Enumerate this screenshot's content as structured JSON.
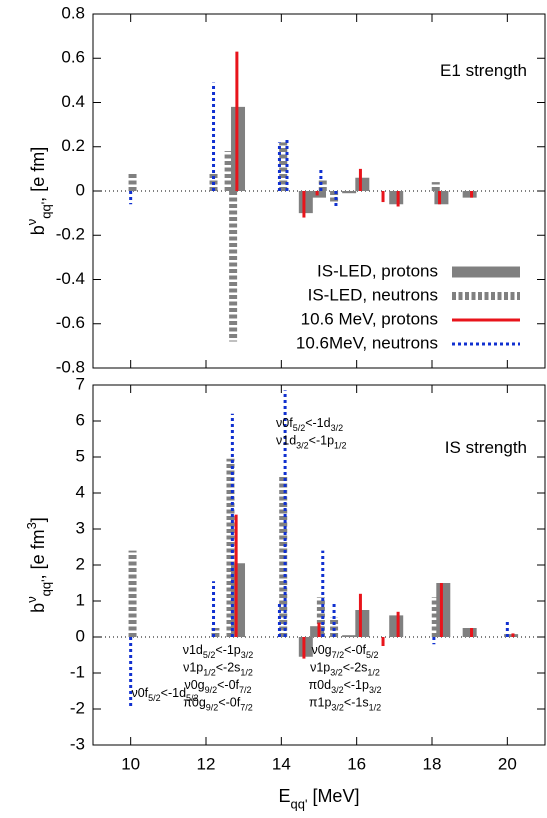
{
  "chart_data": [
    {
      "type": "bar",
      "panel_label": "E1 strength",
      "ylabel": [
        {
          "text": "b"
        },
        {
          "text": "ν",
          "style": "sup"
        },
        {
          "text": "qq'",
          "style": "sub"
        },
        {
          "text": ", [e fm]"
        }
      ],
      "xlim": [
        9,
        21
      ],
      "xticks": [
        10,
        12,
        14,
        16,
        18,
        20
      ],
      "ylim": [
        -0.8,
        0.8
      ],
      "yticks": [
        -0.8,
        -0.6,
        -0.4,
        -0.2,
        0,
        0.2,
        0.4,
        0.6,
        0.8
      ],
      "legend": "lower right",
      "series": [
        {
          "name": "IS-LED, protons",
          "color": "#808080",
          "style": "solid-thick",
          "x": [
            12.85,
            14.65,
            15.0,
            15.8,
            16.15,
            17.05,
            18.25,
            19.0
          ],
          "values": [
            0.38,
            -0.1,
            -0.03,
            -0.01,
            0.06,
            -0.06,
            -0.06,
            -0.03
          ]
        },
        {
          "name": "IS-LED, neutrons",
          "color": "#808080",
          "style": "dashed-thick",
          "x": [
            10.05,
            12.2,
            12.6,
            12.72,
            14.05,
            15.1,
            15.4,
            18.1
          ],
          "values": [
            0.08,
            0.08,
            0.18,
            -0.68,
            0.22,
            0.05,
            -0.05,
            0.04
          ]
        },
        {
          "name": "10.6 MeV, protons",
          "color": "#e8141b",
          "style": "solid-thin",
          "x": [
            12.82,
            14.6,
            14.95,
            16.1,
            16.7,
            17.1,
            18.2,
            19.05
          ],
          "values": [
            0.63,
            -0.12,
            -0.02,
            0.1,
            -0.05,
            -0.07,
            -0.06,
            -0.03
          ]
        },
        {
          "name": "10.6MeV, neutrons",
          "color": "#1030d0",
          "style": "dotted",
          "x": [
            10.0,
            12.2,
            13.95,
            14.15,
            15.05,
            15.45
          ],
          "values": [
            -0.06,
            0.49,
            0.22,
            0.24,
            0.1,
            -0.08
          ]
        }
      ]
    },
    {
      "type": "bar",
      "panel_label": "IS strength",
      "ylabel": [
        {
          "text": "b"
        },
        {
          "text": "ν",
          "style": "sup"
        },
        {
          "text": "qq'",
          "style": "sub"
        },
        {
          "text": ", [e fm"
        },
        {
          "text": "3",
          "style": "sup"
        },
        {
          "text": "]"
        }
      ],
      "xlabel": [
        {
          "text": "E"
        },
        {
          "text": "qq'",
          "style": "sub"
        },
        {
          "text": " [MeV]"
        }
      ],
      "xlim": [
        9,
        21
      ],
      "xticks": [
        10,
        12,
        14,
        16,
        18,
        20
      ],
      "ylim": [
        -3,
        7
      ],
      "yticks": [
        -3,
        -2,
        -1,
        0,
        1,
        2,
        3,
        4,
        5,
        6,
        7
      ],
      "series": [
        {
          "color": "#808080",
          "style": "solid-thick",
          "x": [
            12.85,
            14.65,
            14.95,
            15.8,
            16.15,
            17.05,
            18.3,
            19.0,
            20.1
          ],
          "values": [
            2.05,
            -0.55,
            0.3,
            0.05,
            0.75,
            0.6,
            1.5,
            0.25,
            0.08
          ]
        },
        {
          "color": "#808080",
          "style": "dashed-thick",
          "x": [
            10.05,
            12.25,
            12.65,
            14.05,
            15.05,
            15.4,
            18.1
          ],
          "values": [
            2.4,
            0.25,
            4.95,
            4.5,
            1.1,
            0.55,
            1.1
          ]
        },
        {
          "color": "#e8141b",
          "style": "solid-thin",
          "x": [
            12.8,
            14.6,
            15.0,
            16.1,
            16.7,
            17.1,
            18.25,
            19.05,
            20.15
          ],
          "values": [
            3.4,
            -0.6,
            0.4,
            1.2,
            -0.25,
            0.7,
            1.5,
            0.25,
            0.1
          ]
        },
        {
          "color": "#1030d0",
          "style": "dotted",
          "x": [
            10.0,
            12.2,
            12.7,
            13.95,
            14.1,
            15.1,
            15.4,
            18.05,
            20.0
          ],
          "values": [
            -2.0,
            1.55,
            6.2,
            0.95,
            6.85,
            2.4,
            0.95,
            -0.2,
            0.5
          ]
        }
      ],
      "annotations": [
        {
          "lines": [
            [
              "ν0f",
              "5/2",
              "<-1d",
              "5/2"
            ]
          ]
        },
        {
          "lines": [
            [
              "ν1d",
              "5/2",
              "<-1p",
              "3/2"
            ],
            [
              "ν1p",
              "1/2",
              "<-2s",
              "1/2"
            ],
            [
              "ν0g",
              "9/2",
              "<-0f",
              "7/2"
            ],
            [
              "π0g",
              "9/2",
              "<-0f",
              "7/2"
            ]
          ]
        },
        {
          "lines": [
            [
              "ν0g",
              "7/2",
              "<-0f",
              "5/2"
            ],
            [
              "ν1p",
              "3/2",
              "<-2s",
              "1/2"
            ],
            [
              "π0d",
              "3/2",
              "<-1p",
              "3/2"
            ],
            [
              "π1p",
              "3/2",
              "<-1s",
              "1/2"
            ]
          ]
        },
        {
          "lines": [
            [
              "ν0f",
              "5/2",
              "<-1d",
              "3/2"
            ],
            [
              "ν1d",
              "3/2",
              "<-1p",
              "1/2"
            ]
          ]
        }
      ]
    }
  ]
}
